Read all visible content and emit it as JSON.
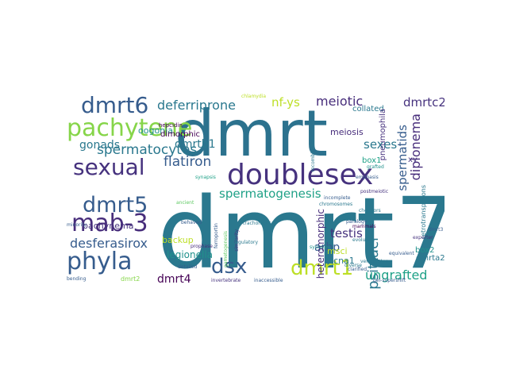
{
  "words": [
    "dmrt7",
    "dmrt",
    "doublesex",
    "pachytene",
    "sexual",
    "dmrt6",
    "dmrt5",
    "mab-3",
    "phyla",
    "dsx",
    "dmrt1",
    "spermatocytes",
    "spermatogenesis",
    "flatiron",
    "deferriprone",
    "desferasirox",
    "meiotic",
    "dmrtc2",
    "nf-ys",
    "gonads",
    "oogonia",
    "dmrtb1",
    "sexes",
    "diplonema",
    "spermatids",
    "testis",
    "psittaci",
    "ungrafted",
    "arbp",
    "box1",
    "box2",
    "meiosis",
    "pachynema",
    "heteromorphic",
    "backup",
    "legionella",
    "dmrt4",
    "dimorphic",
    "collated",
    "pneumophila",
    "ccna1",
    "dmrta2",
    "hepcidin",
    "xy",
    "msci",
    "chromosomes",
    "retrotransposons",
    "chelators",
    "evolution",
    "invertebrate",
    "inaccessible",
    "gel-supershift",
    "vertebrates",
    "exporter",
    "trachomatis",
    "syntenic",
    "paralogy",
    "mammals",
    "incomplete",
    "prophase",
    "ancient",
    "behaved",
    "clarified",
    "ferroportin",
    "gametogenesis",
    "similarity",
    "detailed",
    "minority",
    "bending",
    "grafted",
    "postmeiotic",
    "emphasis",
    "dmrt2",
    "dmrt3",
    "diverse",
    "equivalent",
    "recombination",
    "regulatory",
    "chlamydia",
    "synapsis"
  ]
}
